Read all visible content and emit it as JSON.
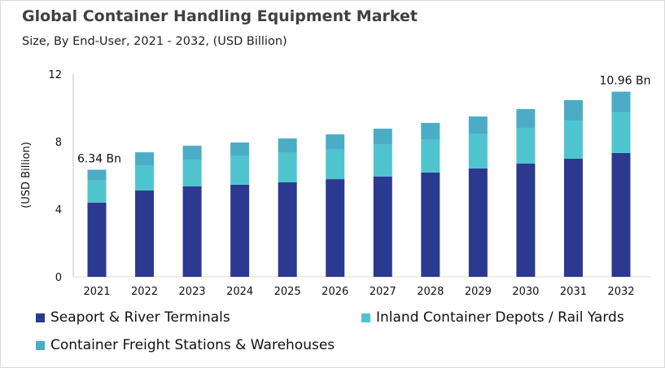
{
  "chart_data": {
    "type": "bar",
    "stacked": true,
    "title": "Global Container Handling Equipment Market",
    "subtitle": "Size, By End-User, 2021 - 2032, (USD Billion)",
    "xlabel": "",
    "ylabel": "(USD Billion)",
    "ylim": [
      0,
      12
    ],
    "yticks": [
      0,
      4,
      8,
      12
    ],
    "grid": false,
    "legend": "bottom",
    "categories": [
      "2021",
      "2022",
      "2023",
      "2024",
      "2025",
      "2026",
      "2027",
      "2028",
      "2029",
      "2030",
      "2031",
      "2032"
    ],
    "series": [
      {
        "name": "Seaport & River Terminals",
        "color": "#2B3990",
        "values": [
          4.39,
          5.11,
          5.35,
          5.45,
          5.59,
          5.78,
          5.94,
          6.17,
          6.41,
          6.7,
          6.99,
          7.33
        ]
      },
      {
        "name": "Inland Container Depots / Rail Yards",
        "color": "#4FC4CF",
        "values": [
          1.31,
          1.49,
          1.59,
          1.7,
          1.75,
          1.75,
          1.88,
          1.94,
          2.04,
          2.12,
          2.26,
          2.4
        ]
      },
      {
        "name": "Container Freight Stations & Warehouses",
        "color": "#4BACC6",
        "values": [
          0.64,
          0.77,
          0.82,
          0.8,
          0.85,
          0.9,
          0.95,
          1.0,
          1.04,
          1.11,
          1.21,
          1.23
        ]
      }
    ],
    "annotations": [
      {
        "category": "2021",
        "text": "6.34 Bn"
      },
      {
        "category": "2032",
        "text": "10.96 Bn"
      }
    ]
  }
}
